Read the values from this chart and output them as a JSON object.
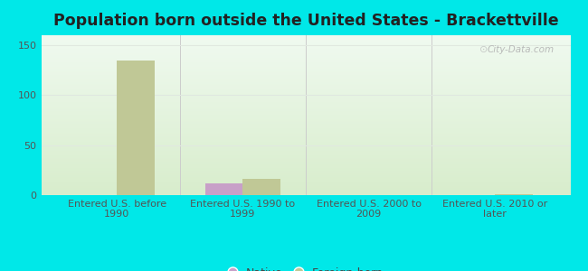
{
  "title": "Population born outside the United States - Brackettville",
  "categories": [
    "Entered U.S. before\n1990",
    "Entered U.S. 1990 to\n1999",
    "Entered U.S. 2000 to\n2009",
    "Entered U.S. 2010 or\nlater"
  ],
  "native_values": [
    0,
    12,
    0,
    0
  ],
  "foreign_born_values": [
    135,
    16,
    0,
    1
  ],
  "native_color": "#c8a0c8",
  "foreign_born_color": "#c0c896",
  "bar_width": 0.3,
  "ylim": [
    0,
    160
  ],
  "yticks": [
    0,
    50,
    100,
    150
  ],
  "bg_top_color": "#d8edcc",
  "bg_bottom_color": "#f0faf0",
  "outer_background": "#00e8e8",
  "title_fontsize": 12.5,
  "tick_fontsize": 8,
  "legend_fontsize": 9,
  "watermark": "City-Data.com",
  "grid_color": "#e0e8e0"
}
